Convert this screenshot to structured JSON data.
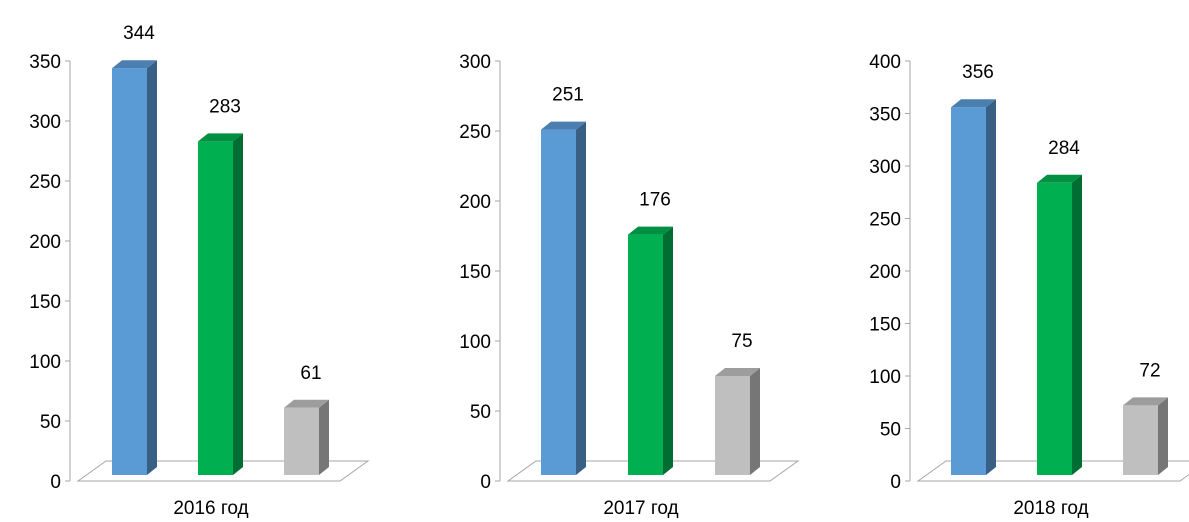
{
  "chart_data": [
    {
      "type": "bar",
      "categories": [
        "2016 год"
      ],
      "series": [
        {
          "values": [
            344
          ],
          "color": "#5b9bd5"
        },
        {
          "values": [
            283
          ],
          "color": "#00b050"
        },
        {
          "values": [
            61
          ],
          "color": "#bfbfbf"
        }
      ],
      "ylim": [
        0,
        350
      ],
      "yticks": [
        0,
        50,
        100,
        150,
        200,
        250,
        300,
        350
      ],
      "data_labels": [
        "344",
        "283",
        "61"
      ],
      "grid": false,
      "legend": "none"
    },
    {
      "type": "bar",
      "categories": [
        "2017 год"
      ],
      "series": [
        {
          "values": [
            251
          ],
          "color": "#5b9bd5"
        },
        {
          "values": [
            176
          ],
          "color": "#00b050"
        },
        {
          "values": [
            75
          ],
          "color": "#bfbfbf"
        }
      ],
      "ylim": [
        0,
        300
      ],
      "yticks": [
        0,
        50,
        100,
        150,
        200,
        250,
        300
      ],
      "data_labels": [
        "251",
        "176",
        "75"
      ],
      "grid": false,
      "legend": "none"
    },
    {
      "type": "bar",
      "categories": [
        "2018 год"
      ],
      "series": [
        {
          "values": [
            356
          ],
          "color": "#5b9bd5"
        },
        {
          "values": [
            284
          ],
          "color": "#00b050"
        },
        {
          "values": [
            72
          ],
          "color": "#bfbfbf"
        }
      ],
      "ylim": [
        0,
        400
      ],
      "yticks": [
        0,
        50,
        100,
        150,
        200,
        250,
        300,
        350,
        400
      ],
      "data_labels": [
        "356",
        "284",
        "72"
      ],
      "grid": false,
      "legend": "none"
    }
  ]
}
